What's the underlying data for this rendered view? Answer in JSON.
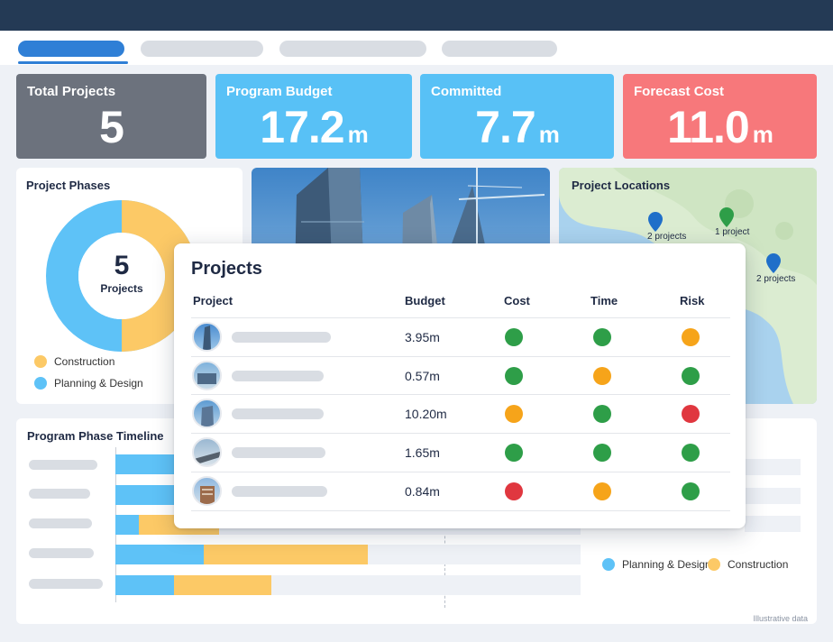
{
  "colors": {
    "planning": "#5ec2f7",
    "construction": "#fcc966",
    "green": "#2e9e48",
    "amber": "#f6a41a",
    "red": "#e0373f",
    "kpi_gray": "#6c727d",
    "kpi_blue": "#58c1f6",
    "kpi_red": "#f7787b"
  },
  "kpis": {
    "total": {
      "label": "Total Projects",
      "value": "5",
      "unit": ""
    },
    "budget": {
      "label": "Program Budget",
      "value": "17.2",
      "unit": "m"
    },
    "committed": {
      "label": "Committed",
      "value": "7.7",
      "unit": "m"
    },
    "forecast": {
      "label": "Forecast Cost",
      "value": "11.0",
      "unit": "m"
    }
  },
  "phases": {
    "title": "Project Phases",
    "center_value": "5",
    "center_label": "Projects",
    "legend": [
      {
        "label": "Construction",
        "color": "#fcc966"
      },
      {
        "label": "Planning & Design",
        "color": "#5ec2f7"
      }
    ],
    "construction_share": 0.5
  },
  "locations": {
    "title": "Project Locations",
    "pins": [
      {
        "label": "2 projects",
        "color": "#1f6fc9"
      },
      {
        "label": "1 project",
        "color": "#2e9e48"
      },
      {
        "label": "2 projects",
        "color": "#1f6fc9"
      }
    ]
  },
  "projects": {
    "title": "Projects",
    "headers": {
      "project": "Project",
      "budget": "Budget",
      "cost": "Cost",
      "time": "Time",
      "risk": "Risk"
    },
    "rows": [
      {
        "budget": "3.95m",
        "cost": "green",
        "time": "green",
        "risk": "amber"
      },
      {
        "budget": "0.57m",
        "cost": "green",
        "time": "amber",
        "risk": "green"
      },
      {
        "budget": "10.20m",
        "cost": "amber",
        "time": "green",
        "risk": "red"
      },
      {
        "budget": "1.65m",
        "cost": "green",
        "time": "green",
        "risk": "green"
      },
      {
        "budget": "0.84m",
        "cost": "red",
        "time": "amber",
        "risk": "green"
      }
    ]
  },
  "timeline": {
    "title": "Program Phase Timeline",
    "legend": [
      {
        "label": "Planning & Design",
        "color": "#5ec2f7"
      },
      {
        "label": "Construction",
        "color": "#fcc966"
      }
    ]
  },
  "footnote": "Illustrative data"
}
